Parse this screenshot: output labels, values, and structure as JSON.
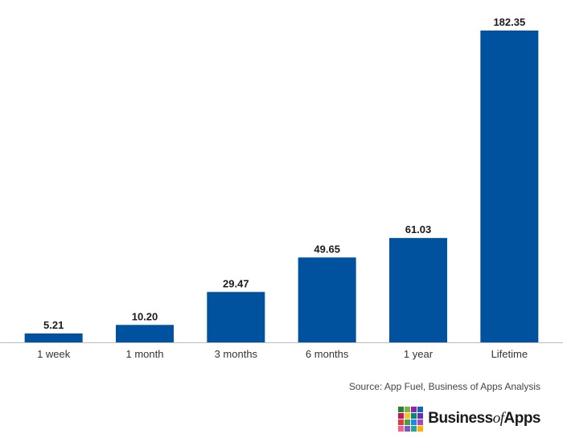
{
  "chart_data": {
    "type": "bar",
    "categories": [
      "1 week",
      "1 month",
      "3 months",
      "6 months",
      "1 year",
      "Lifetime"
    ],
    "values": [
      5.21,
      10.2,
      29.47,
      49.65,
      61.03,
      182.35
    ],
    "value_labels": [
      "5.21",
      "10.20",
      "29.47",
      "49.65",
      "61.03",
      "182.35"
    ],
    "title": "",
    "xlabel": "",
    "ylabel": "",
    "ylim": [
      0,
      190
    ],
    "grid": false,
    "legend": "none",
    "bar_color": "#00519e"
  },
  "footer": {
    "source": "Source: App Fuel, Business of Apps Analysis",
    "brand_business": "Business",
    "brand_of": "of",
    "brand_apps": "Apps"
  },
  "logo_colors": [
    "#2e7d32",
    "#7cb342",
    "#8e24aa",
    "#1565c0",
    "#c2185b",
    "#fbc02d",
    "#00897b",
    "#5e35b1",
    "#e53935",
    "#43a047",
    "#1e88e5",
    "#ab47bc",
    "#f06292",
    "#7e57c2",
    "#26a69a",
    "#ffb300"
  ]
}
